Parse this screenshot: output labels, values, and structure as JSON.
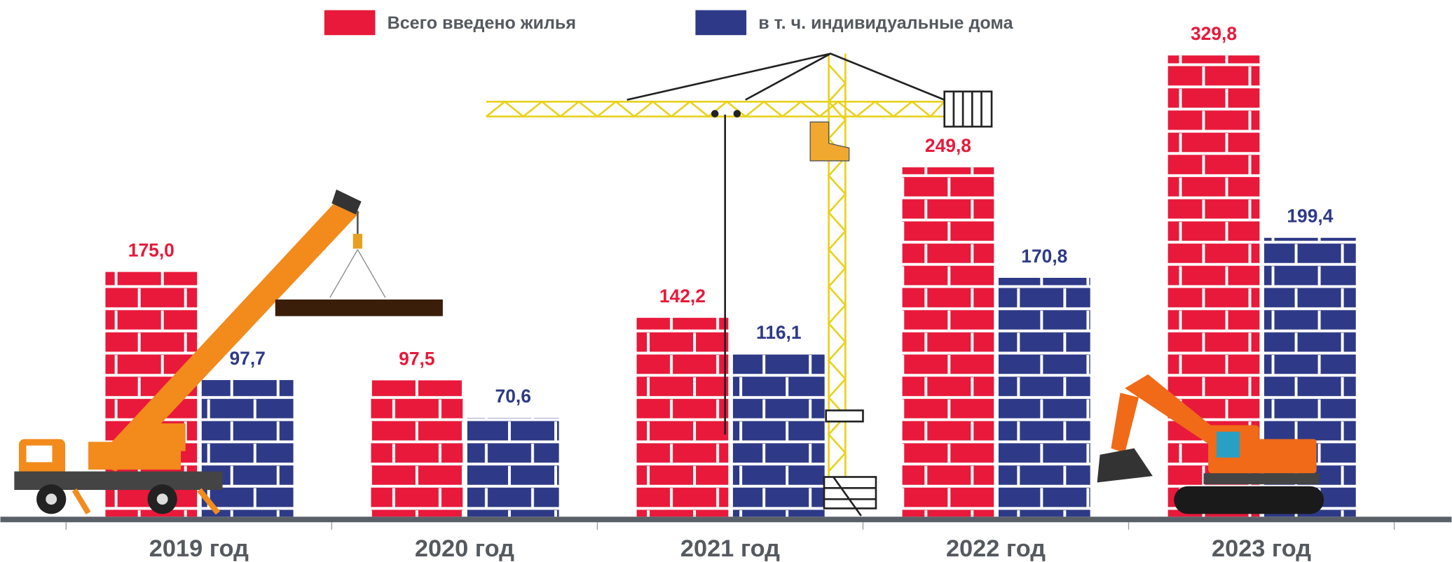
{
  "chart_data": {
    "type": "bar",
    "categories": [
      "2019 год",
      "2020 год",
      "2021 год",
      "2022 год",
      "2023 год"
    ],
    "series": [
      {
        "name": "Всего введено жилья",
        "color": "#e8193a",
        "values": [
          175.0,
          97.5,
          142.2,
          249.8,
          329.8
        ],
        "value_labels": [
          "175,0",
          "97,5",
          "142,2",
          "249,8",
          "329,8"
        ]
      },
      {
        "name": "в т. ч. индивидуальные дома",
        "color": "#2e3a87",
        "values": [
          97.7,
          70.6,
          116.1,
          170.8,
          199.4
        ],
        "value_labels": [
          "97,7",
          "70,6",
          "116,1",
          "170,8",
          "199,4"
        ]
      }
    ]
  }
}
